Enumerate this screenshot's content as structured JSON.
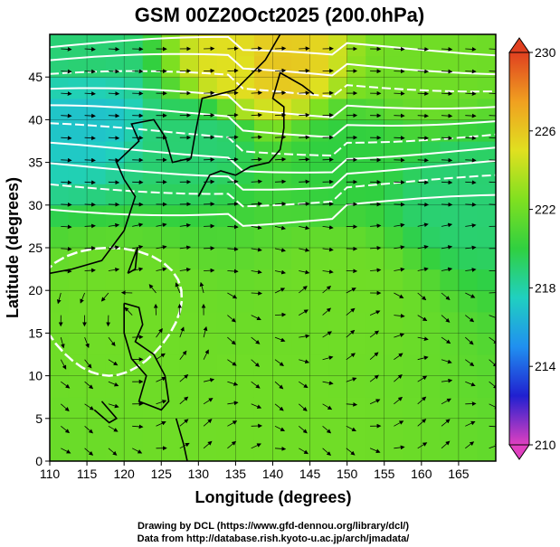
{
  "chart_data": {
    "type": "heatmap",
    "title": "GSM 00Z20Oct2025 (200.0hPa)",
    "xlabel": "Longitude (degrees)",
    "ylabel": "Latitude  (degrees)",
    "xlim": [
      110,
      170
    ],
    "ylim": [
      0,
      50
    ],
    "x_ticks": [
      110,
      115,
      120,
      125,
      130,
      135,
      140,
      145,
      150,
      155,
      160,
      165
    ],
    "y_ticks": [
      0,
      5,
      10,
      15,
      20,
      25,
      30,
      35,
      40,
      45
    ],
    "colorbar": {
      "min": 210,
      "max": 230,
      "ticks": [
        210,
        214,
        218,
        222,
        226,
        230
      ],
      "colors": [
        "#e040c0",
        "#2020d0",
        "#2090f0",
        "#20d0c0",
        "#30d040",
        "#80e020",
        "#e0e020",
        "#f0a020",
        "#e04020"
      ]
    },
    "field_samples": [
      {
        "lon": 115,
        "lat": 47,
        "value": 219
      },
      {
        "lon": 135,
        "lat": 46,
        "value": 225
      },
      {
        "lon": 140,
        "lat": 46,
        "value": 226
      },
      {
        "lon": 160,
        "lat": 46,
        "value": 222
      },
      {
        "lon": 115,
        "lat": 41,
        "value": 217
      },
      {
        "lon": 130,
        "lat": 38,
        "value": 219
      },
      {
        "lon": 150,
        "lat": 36,
        "value": 220
      },
      {
        "lon": 165,
        "lat": 31,
        "value": 219
      },
      {
        "lon": 120,
        "lat": 18,
        "value": 222
      },
      {
        "lon": 150,
        "lat": 20,
        "value": 222
      },
      {
        "lon": 140,
        "lat": 5,
        "value": 222
      }
    ]
  },
  "credits": {
    "line1": "Drawing by DCL (https://www.gfd-dennou.org/library/dcl/)",
    "line2": "Data from http://database.rish.kyoto-u.ac.jp/arch/jmadata/"
  }
}
